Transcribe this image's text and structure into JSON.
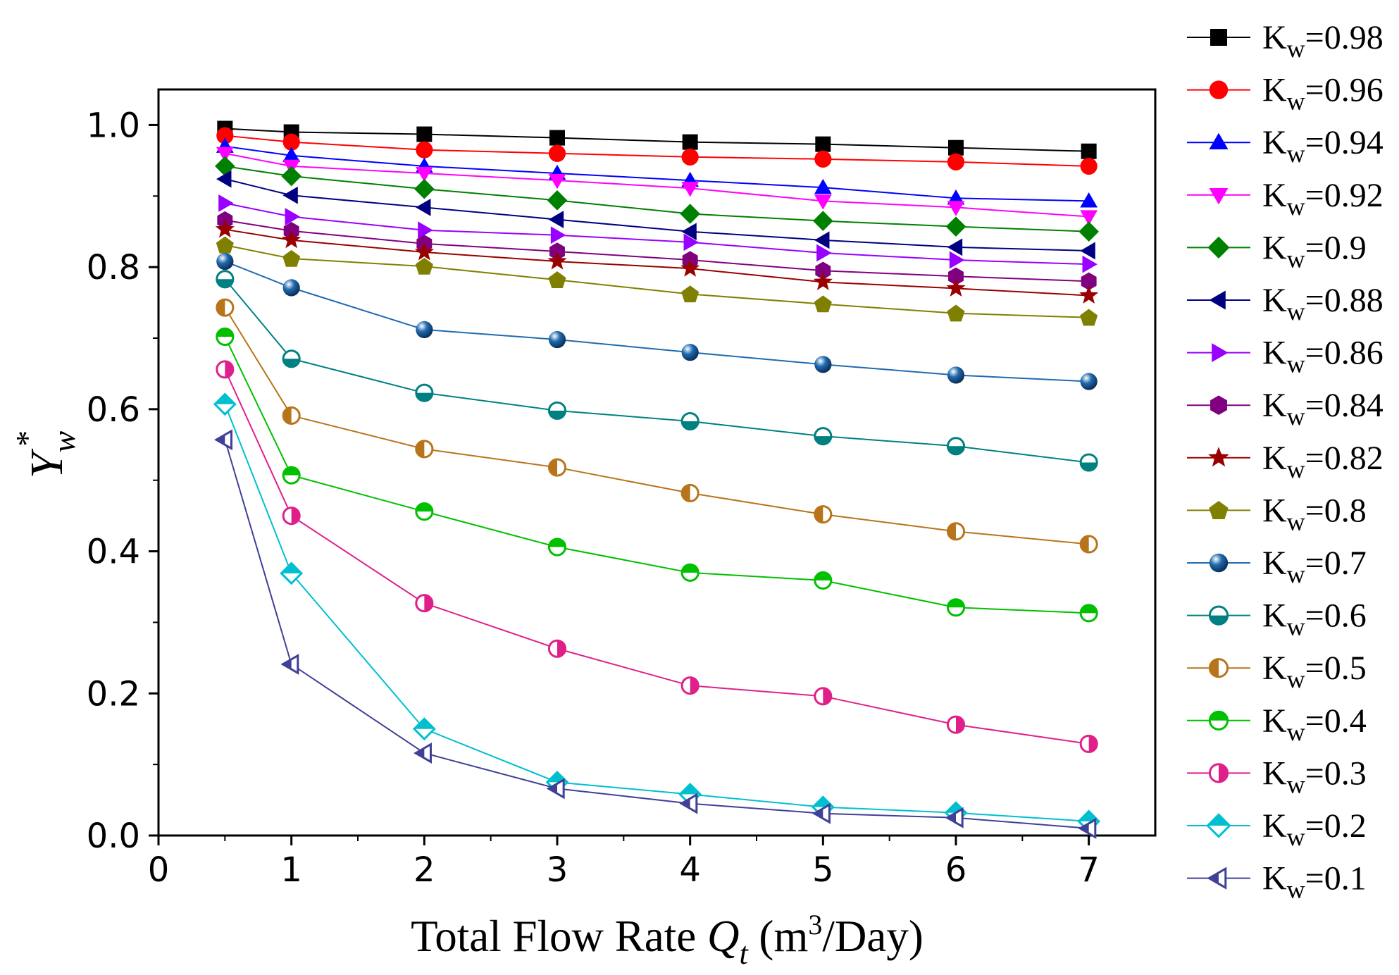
{
  "chart_data": {
    "type": "line",
    "title": "",
    "xlabel": {
      "main": "Total Flow Rate ",
      "symbol": "Q",
      "subscript": "t",
      "unit_open": " (m",
      "unit_sup": "3",
      "unit_close": "/Day)"
    },
    "ylabel": {
      "symbol": "Y",
      "subscript": "w",
      "superscript": "*"
    },
    "xlim": [
      0,
      7.5
    ],
    "ylim": [
      0,
      1.05
    ],
    "x_ticks": [
      0,
      1,
      2,
      3,
      4,
      5,
      6,
      7
    ],
    "x_tick_labels": [
      "0",
      "1",
      "2",
      "3",
      "4",
      "5",
      "6",
      "7"
    ],
    "y_ticks": [
      0.0,
      0.2,
      0.4,
      0.6,
      0.8,
      1.0
    ],
    "y_tick_labels": [
      "0.0",
      "0.2",
      "0.4",
      "0.6",
      "0.8",
      "1.0"
    ],
    "grid": false,
    "legend_position": "right-outside",
    "x": [
      0.5,
      1,
      2,
      3,
      4,
      5,
      6,
      7
    ],
    "series": [
      {
        "name": "K",
        "sub": "w",
        "value_label": "=0.98",
        "color": "#000000",
        "marker": "square",
        "values": [
          0.995,
          0.99,
          0.987,
          0.982,
          0.976,
          0.973,
          0.968,
          0.963
        ]
      },
      {
        "name": "K",
        "sub": "w",
        "value_label": "=0.96",
        "color": "#ff0000",
        "marker": "circle",
        "values": [
          0.985,
          0.976,
          0.965,
          0.96,
          0.955,
          0.952,
          0.948,
          0.942
        ]
      },
      {
        "name": "K",
        "sub": "w",
        "value_label": "=0.94",
        "color": "#0000ff",
        "marker": "triangle-up",
        "values": [
          0.97,
          0.957,
          0.942,
          0.932,
          0.922,
          0.912,
          0.897,
          0.893
        ]
      },
      {
        "name": "K",
        "sub": "w",
        "value_label": "=0.92",
        "color": "#ff00ff",
        "marker": "triangle-down",
        "values": [
          0.96,
          0.942,
          0.932,
          0.922,
          0.911,
          0.893,
          0.884,
          0.871
        ]
      },
      {
        "name": "K",
        "sub": "w",
        "value_label": "=0.9",
        "color": "#008000",
        "marker": "diamond",
        "values": [
          0.942,
          0.928,
          0.91,
          0.894,
          0.875,
          0.865,
          0.857,
          0.85
        ]
      },
      {
        "name": "K",
        "sub": "w",
        "value_label": "=0.88",
        "color": "#000080",
        "marker": "triangle-left",
        "values": [
          0.924,
          0.901,
          0.884,
          0.867,
          0.85,
          0.838,
          0.828,
          0.823
        ]
      },
      {
        "name": "K",
        "sub": "w",
        "value_label": "=0.86",
        "color": "#9900ff",
        "marker": "triangle-right",
        "values": [
          0.89,
          0.871,
          0.852,
          0.845,
          0.835,
          0.82,
          0.81,
          0.804
        ]
      },
      {
        "name": "K",
        "sub": "w",
        "value_label": "=0.84",
        "color": "#800080",
        "marker": "hexagon",
        "values": [
          0.866,
          0.851,
          0.833,
          0.822,
          0.81,
          0.795,
          0.787,
          0.78
        ]
      },
      {
        "name": "K",
        "sub": "w",
        "value_label": "=0.82",
        "color": "#990000",
        "marker": "star",
        "values": [
          0.853,
          0.838,
          0.821,
          0.808,
          0.798,
          0.779,
          0.77,
          0.76
        ]
      },
      {
        "name": "K",
        "sub": "w",
        "value_label": "=0.8",
        "color": "#808000",
        "marker": "pentagon",
        "values": [
          0.831,
          0.812,
          0.801,
          0.782,
          0.762,
          0.748,
          0.735,
          0.729
        ]
      },
      {
        "name": "K",
        "sub": "w",
        "value_label": "=0.7",
        "color": "#1f6bb0",
        "marker": "ball",
        "values": [
          0.808,
          0.771,
          0.712,
          0.698,
          0.68,
          0.663,
          0.648,
          0.639
        ]
      },
      {
        "name": "K",
        "sub": "w",
        "value_label": "=0.6",
        "color": "#008080",
        "marker": "circle-half-bottom",
        "values": [
          0.783,
          0.671,
          0.623,
          0.598,
          0.583,
          0.562,
          0.548,
          0.525
        ]
      },
      {
        "name": "K",
        "sub": "w",
        "value_label": "=0.5",
        "color": "#b8741a",
        "marker": "circle-half-left",
        "values": [
          0.743,
          0.591,
          0.544,
          0.518,
          0.482,
          0.452,
          0.428,
          0.41
        ]
      },
      {
        "name": "K",
        "sub": "w",
        "value_label": "=0.4",
        "color": "#00c000",
        "marker": "circle-half-top",
        "values": [
          0.702,
          0.507,
          0.456,
          0.406,
          0.37,
          0.359,
          0.321,
          0.313
        ]
      },
      {
        "name": "K",
        "sub": "w",
        "value_label": "=0.3",
        "color": "#e0208a",
        "marker": "circle-half-right",
        "values": [
          0.656,
          0.45,
          0.327,
          0.263,
          0.211,
          0.196,
          0.156,
          0.129
        ]
      },
      {
        "name": "K",
        "sub": "w",
        "value_label": "=0.2",
        "color": "#00c0d0",
        "marker": "diamond-half",
        "values": [
          0.607,
          0.369,
          0.15,
          0.075,
          0.058,
          0.04,
          0.032,
          0.02
        ]
      },
      {
        "name": "K",
        "sub": "w",
        "value_label": "=0.1",
        "color": "#404098",
        "marker": "triangle-left-half",
        "values": [
          0.557,
          0.241,
          0.116,
          0.066,
          0.045,
          0.031,
          0.025,
          0.01
        ]
      }
    ]
  }
}
